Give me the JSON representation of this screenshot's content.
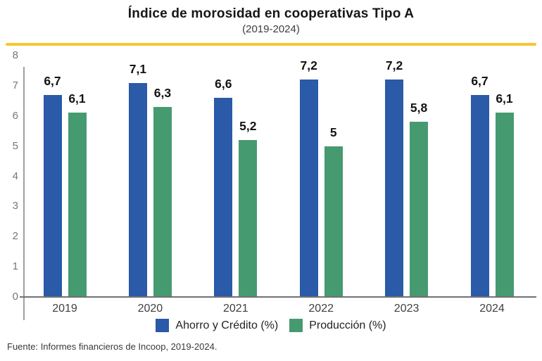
{
  "header": {
    "title": "Índice de morosidad en cooperativas Tipo A",
    "subtitle": "(2019-2024)",
    "accent_rule_color": "#f6c62f"
  },
  "chart_data": {
    "type": "bar",
    "title": "Índice de morosidad en cooperativas Tipo A",
    "subtitle": "(2019-2024)",
    "categories": [
      "2019",
      "2020",
      "2021",
      "2022",
      "2023",
      "2024"
    ],
    "series": [
      {
        "name": "Ahorro y Crédito (%)",
        "color": "#2a5aa8",
        "values": [
          6.7,
          7.1,
          6.6,
          7.2,
          7.2,
          6.7
        ],
        "labels": [
          "6,7",
          "7,1",
          "6,6",
          "7,2",
          "7,2",
          "6,7"
        ]
      },
      {
        "name": "Producción (%)",
        "color": "#469a70",
        "values": [
          6.1,
          6.3,
          5.2,
          5,
          5.8,
          6.1
        ],
        "labels": [
          "6,1",
          "6,3",
          "5,2",
          "5",
          "5,8",
          "6,1"
        ]
      }
    ],
    "ylim": [
      0,
      8
    ],
    "yticks": [
      0,
      1,
      2,
      3,
      4,
      5,
      6,
      7,
      8
    ],
    "grid": false,
    "legend_position": "bottom",
    "decimal_separator": ","
  },
  "footer": {
    "source": "Fuente: Informes financieros de Incoop, 2019-2024."
  }
}
